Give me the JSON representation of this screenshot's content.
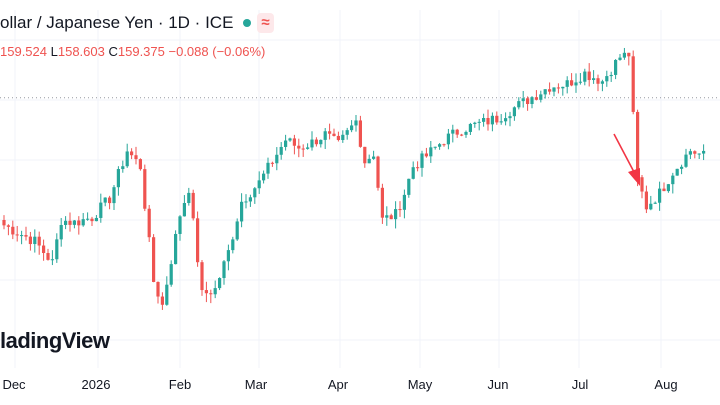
{
  "header": {
    "title": "ollar / Japanese Yen · 1D · ICE",
    "status_icon": "green-dot-icon",
    "indicator_icon": "wave-icon",
    "indicator_glyph": "≈"
  },
  "ohlc": {
    "h_label": "",
    "h_value": "159.524",
    "l_label": "L",
    "l_value": "158.603",
    "c_label": "C",
    "c_value": "159.375",
    "change": "−0.088 (−0.06%)"
  },
  "logo_text": "ladingView",
  "colors": {
    "up": "#26a69a",
    "down": "#ef5350",
    "grid": "#f0f3fa",
    "annotation": "#f23645",
    "price_line": "#9598a1",
    "text": "#131722"
  },
  "chart_data": {
    "type": "candlestick",
    "timeframe": "1D",
    "x_ticks": [
      "Dec",
      "2026",
      "Feb",
      "Mar",
      "Apr",
      "May",
      "Jun",
      "Jul",
      "Aug"
    ],
    "ylim": [
      151,
      161
    ],
    "last_close": 159.375,
    "anchors": [
      [
        0,
        154.6
      ],
      [
        7,
        154.0
      ],
      [
        11,
        153.2
      ],
      [
        13,
        154.8
      ],
      [
        16,
        154.7
      ],
      [
        20,
        154.9
      ],
      [
        24,
        155.6
      ],
      [
        28,
        157.4
      ],
      [
        31,
        156.8
      ],
      [
        34,
        152.5
      ],
      [
        36,
        151.6
      ],
      [
        40,
        155.0
      ],
      [
        42,
        156.0
      ],
      [
        45,
        152.0
      ],
      [
        48,
        152.2
      ],
      [
        51,
        153.6
      ],
      [
        54,
        155.5
      ],
      [
        58,
        156.2
      ],
      [
        61,
        157.0
      ],
      [
        64,
        157.8
      ],
      [
        67,
        157.5
      ],
      [
        70,
        157.7
      ],
      [
        73,
        158.0
      ],
      [
        76,
        157.6
      ],
      [
        80,
        158.5
      ],
      [
        82,
        157.0
      ],
      [
        84,
        157.3
      ],
      [
        86,
        154.8
      ],
      [
        89,
        155.0
      ],
      [
        91,
        155.8
      ],
      [
        93,
        156.8
      ],
      [
        96,
        157.2
      ],
      [
        100,
        157.8
      ],
      [
        104,
        158.2
      ],
      [
        108,
        158.4
      ],
      [
        112,
        158.6
      ],
      [
        116,
        159.0
      ],
      [
        120,
        159.4
      ],
      [
        124,
        159.8
      ],
      [
        128,
        159.9
      ],
      [
        132,
        160.3
      ],
      [
        136,
        160.0
      ],
      [
        140,
        160.9
      ],
      [
        142,
        161.0
      ],
      [
        144,
        156.3
      ],
      [
        146,
        155.3
      ],
      [
        149,
        155.8
      ],
      [
        152,
        156.6
      ],
      [
        156,
        157.4
      ],
      [
        159,
        157.2
      ]
    ]
  }
}
